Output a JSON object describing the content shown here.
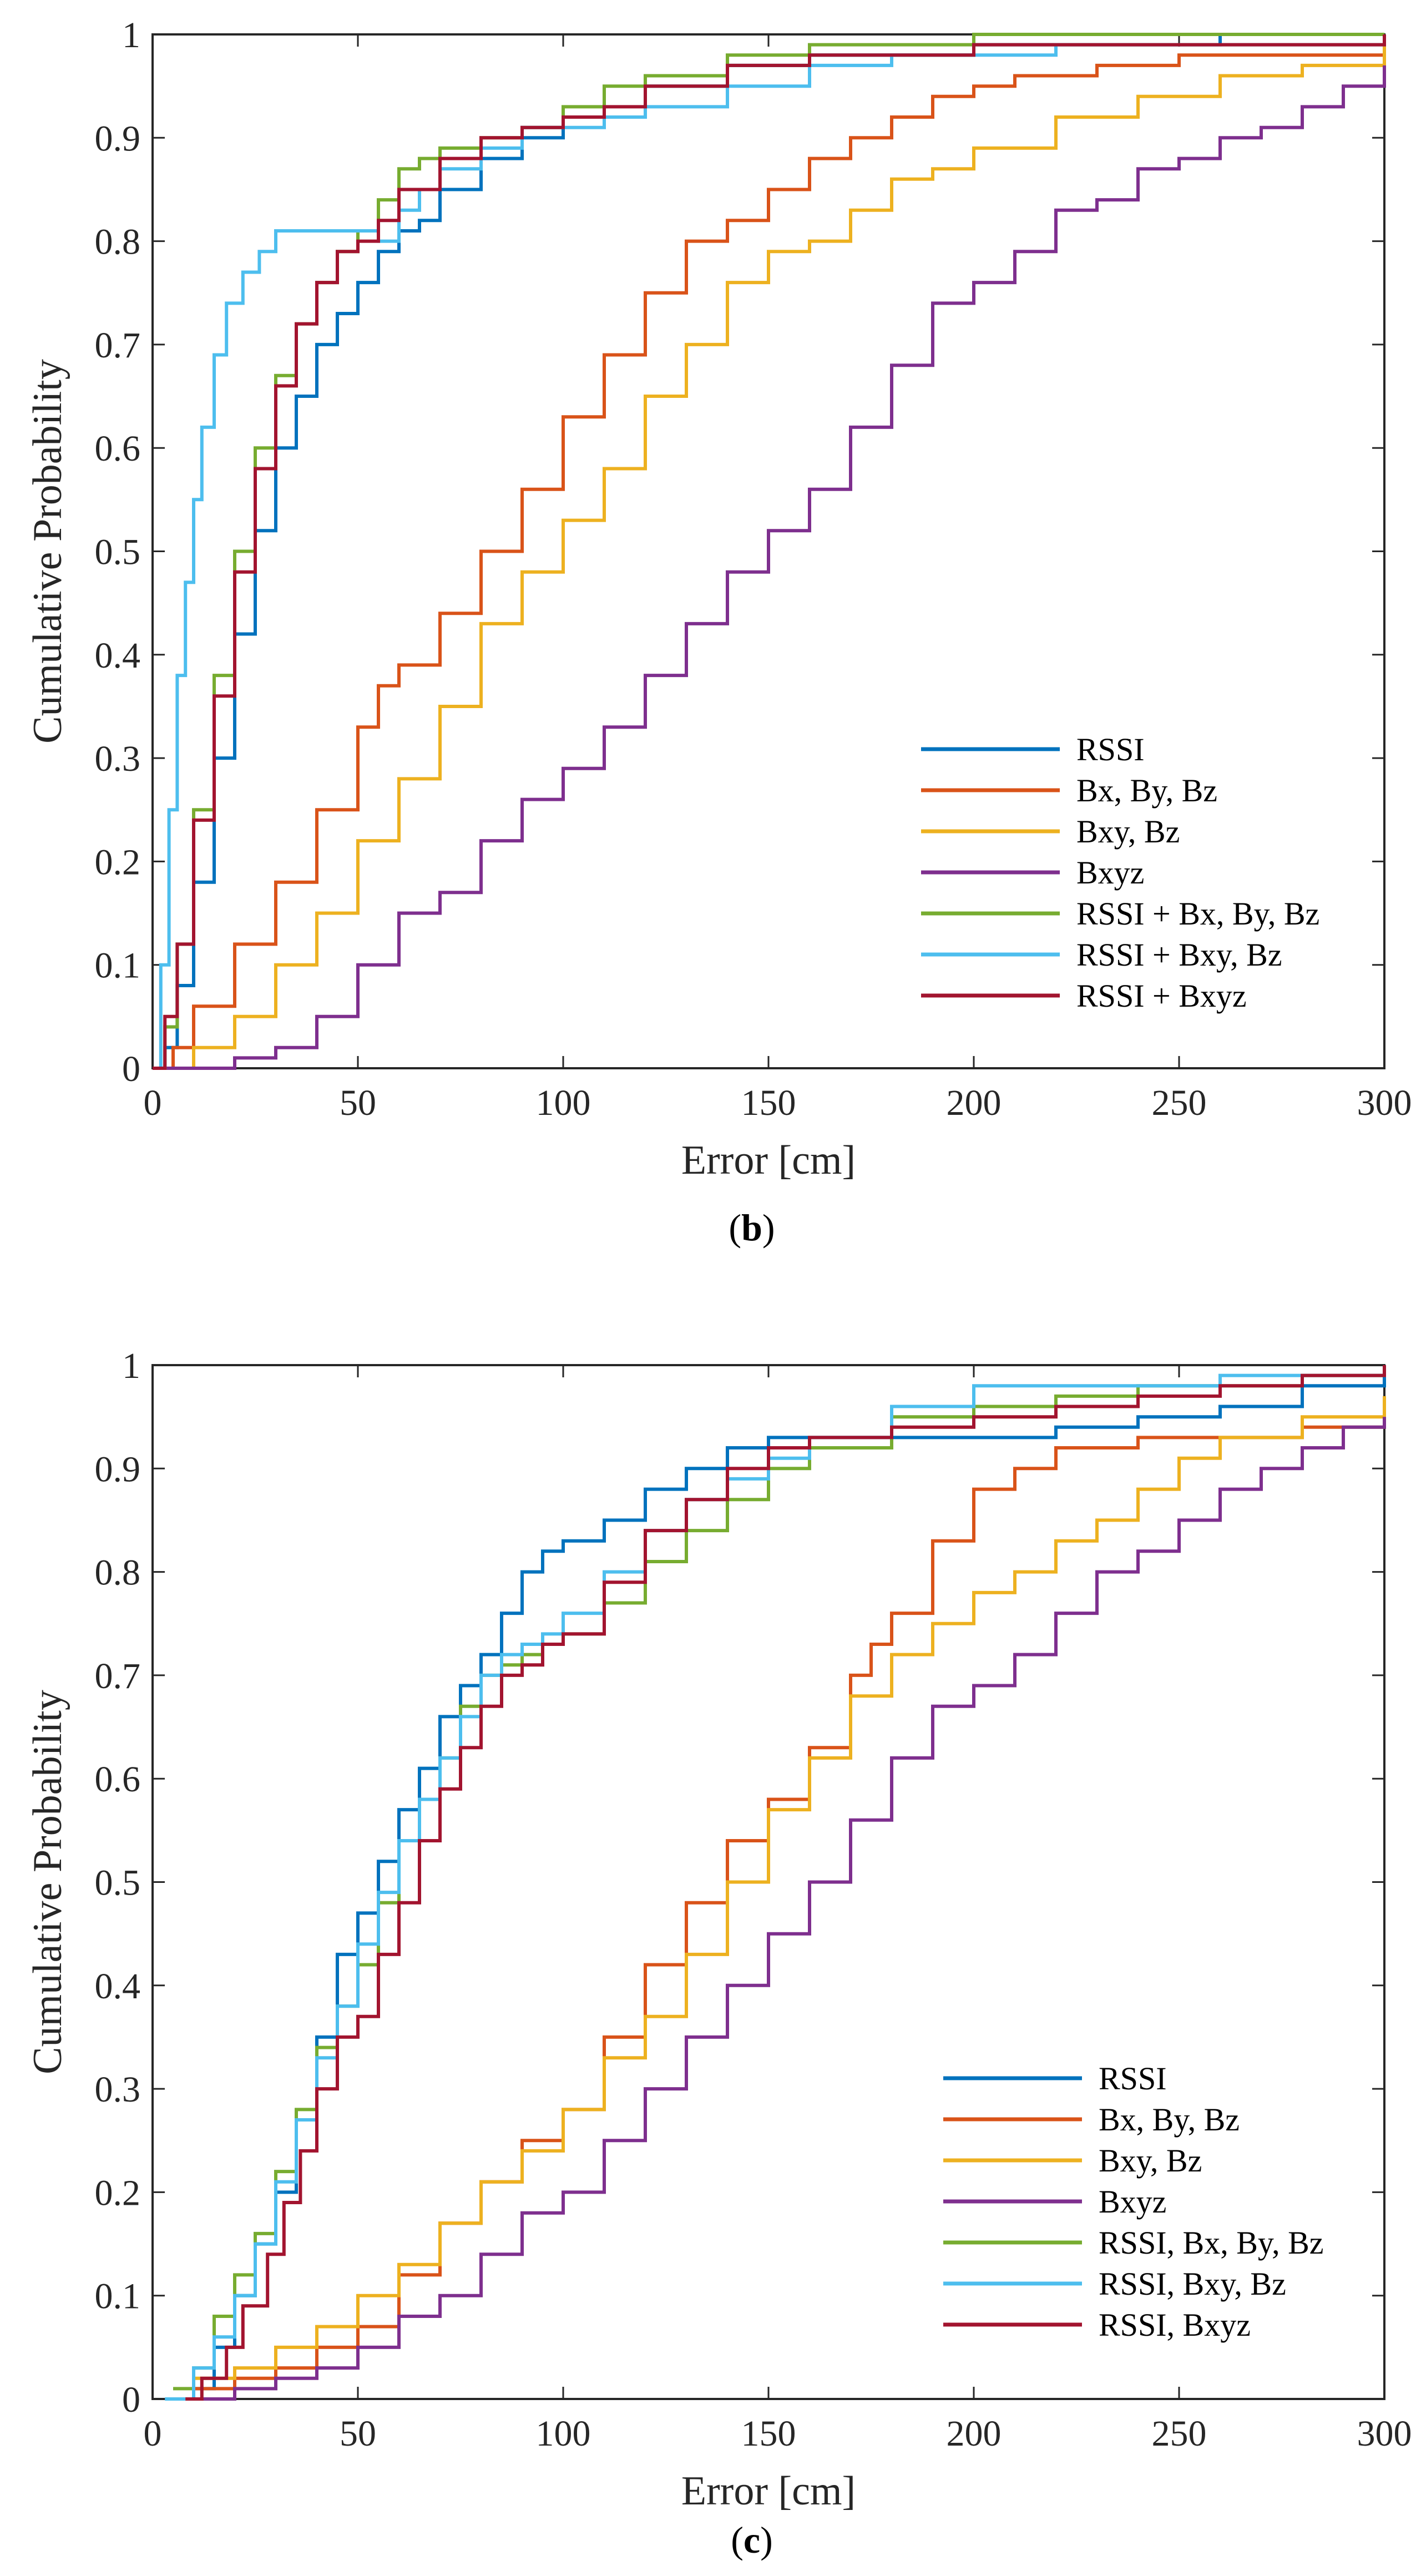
{
  "figure": {
    "colors": {
      "blue": "#0072BD",
      "orange": "#D95319",
      "yellow": "#EDB120",
      "purple": "#7E2F8E",
      "green": "#77AC30",
      "cyan": "#4DBEEE",
      "darkred": "#A2142F"
    }
  },
  "chart_data": [
    {
      "type": "line",
      "panel": "b",
      "caption": {
        "open": "(",
        "letter": "b",
        "close": ")"
      },
      "title": "",
      "xlabel": "Error [cm]",
      "ylabel": "Cumulative Probability",
      "xlim": [
        0,
        300
      ],
      "ylim": [
        0,
        1
      ],
      "xticks": [
        0,
        50,
        100,
        150,
        200,
        250,
        300
      ],
      "yticks": [
        0,
        0.1,
        0.2,
        0.3,
        0.4,
        0.5,
        0.6,
        0.7,
        0.8,
        0.9,
        1
      ],
      "xtick_labels": [
        "0",
        "50",
        "100",
        "150",
        "200",
        "250",
        "300"
      ],
      "ytick_labels": [
        "0",
        "0.1",
        "0.2",
        "0.3",
        "0.4",
        "0.5",
        "0.6",
        "0.7",
        "0.8",
        "0.9",
        "1"
      ],
      "grid": false,
      "legend_position": "bottom-right",
      "series": [
        {
          "name": "RSSI",
          "color": "#0072BD",
          "x": [
            0,
            3,
            6,
            10,
            15,
            20,
            25,
            30,
            35,
            40,
            45,
            50,
            55,
            60,
            65,
            70,
            80,
            90,
            100,
            120,
            140,
            160,
            200,
            260,
            300
          ],
          "y": [
            0,
            0.02,
            0.08,
            0.18,
            0.3,
            0.42,
            0.52,
            0.6,
            0.65,
            0.7,
            0.73,
            0.76,
            0.79,
            0.81,
            0.82,
            0.85,
            0.88,
            0.9,
            0.92,
            0.95,
            0.97,
            0.98,
            0.99,
            1.0,
            1.0
          ]
        },
        {
          "name": "Bx, By, Bz",
          "color": "#D95319",
          "x": [
            0,
            5,
            10,
            20,
            30,
            40,
            50,
            55,
            60,
            70,
            80,
            90,
            100,
            110,
            120,
            130,
            140,
            150,
            160,
            170,
            180,
            190,
            200,
            210,
            230,
            250,
            300
          ],
          "y": [
            0,
            0.02,
            0.06,
            0.12,
            0.18,
            0.25,
            0.33,
            0.37,
            0.39,
            0.44,
            0.5,
            0.56,
            0.63,
            0.69,
            0.75,
            0.8,
            0.82,
            0.85,
            0.88,
            0.9,
            0.92,
            0.94,
            0.95,
            0.96,
            0.97,
            0.98,
            0.99
          ]
        },
        {
          "name": "Bxy, Bz",
          "color": "#EDB120",
          "x": [
            0,
            10,
            20,
            30,
            40,
            50,
            60,
            70,
            80,
            90,
            100,
            110,
            120,
            130,
            140,
            150,
            160,
            170,
            180,
            190,
            200,
            220,
            240,
            260,
            280,
            300
          ],
          "y": [
            0,
            0.02,
            0.05,
            0.1,
            0.15,
            0.22,
            0.28,
            0.35,
            0.43,
            0.48,
            0.53,
            0.58,
            0.65,
            0.7,
            0.76,
            0.79,
            0.8,
            0.83,
            0.86,
            0.87,
            0.89,
            0.92,
            0.94,
            0.96,
            0.97,
            0.99
          ]
        },
        {
          "name": "Bxyz",
          "color": "#7E2F8E",
          "x": [
            0,
            10,
            20,
            30,
            40,
            50,
            60,
            70,
            80,
            90,
            100,
            110,
            120,
            130,
            140,
            150,
            160,
            170,
            180,
            190,
            200,
            210,
            220,
            230,
            240,
            250,
            260,
            270,
            280,
            290,
            300
          ],
          "y": [
            0,
            0.0,
            0.01,
            0.02,
            0.05,
            0.1,
            0.15,
            0.17,
            0.22,
            0.26,
            0.29,
            0.33,
            0.38,
            0.43,
            0.48,
            0.52,
            0.56,
            0.62,
            0.68,
            0.74,
            0.76,
            0.79,
            0.83,
            0.84,
            0.87,
            0.88,
            0.9,
            0.91,
            0.93,
            0.95,
            0.97
          ]
        },
        {
          "name": "RSSI + Bx, By, Bz",
          "color": "#77AC30",
          "x": [
            0,
            3,
            6,
            10,
            15,
            20,
            25,
            30,
            35,
            40,
            45,
            50,
            55,
            60,
            65,
            70,
            80,
            90,
            100,
            110,
            120,
            140,
            160,
            200,
            300
          ],
          "y": [
            0,
            0.04,
            0.12,
            0.25,
            0.38,
            0.5,
            0.6,
            0.67,
            0.72,
            0.76,
            0.79,
            0.81,
            0.84,
            0.87,
            0.88,
            0.89,
            0.9,
            0.91,
            0.93,
            0.95,
            0.96,
            0.98,
            0.99,
            1.0,
            1.0
          ]
        },
        {
          "name": "RSSI + Bxy, Bz",
          "color": "#4DBEEE",
          "x": [
            0,
            2,
            4,
            6,
            8,
            10,
            12,
            15,
            18,
            22,
            26,
            30,
            40,
            50,
            55,
            60,
            65,
            70,
            80,
            90,
            100,
            110,
            120,
            140,
            160,
            180,
            220,
            300
          ],
          "y": [
            0,
            0.1,
            0.25,
            0.38,
            0.47,
            0.55,
            0.62,
            0.69,
            0.74,
            0.77,
            0.79,
            0.81,
            0.81,
            0.81,
            0.8,
            0.83,
            0.85,
            0.87,
            0.89,
            0.91,
            0.91,
            0.92,
            0.93,
            0.95,
            0.97,
            0.98,
            0.99,
            1.0
          ]
        },
        {
          "name": "RSSI + Bxyz",
          "color": "#A2142F",
          "x": [
            0,
            3,
            6,
            10,
            15,
            20,
            25,
            30,
            35,
            40,
            45,
            50,
            55,
            60,
            70,
            80,
            90,
            100,
            110,
            120,
            140,
            160,
            200,
            300
          ],
          "y": [
            0,
            0.05,
            0.12,
            0.24,
            0.36,
            0.48,
            0.58,
            0.66,
            0.72,
            0.76,
            0.79,
            0.8,
            0.82,
            0.85,
            0.88,
            0.9,
            0.91,
            0.92,
            0.93,
            0.95,
            0.97,
            0.98,
            0.99,
            1.0
          ]
        }
      ]
    },
    {
      "type": "line",
      "panel": "c",
      "caption": {
        "open": "(",
        "letter": "c",
        "close": ")"
      },
      "title": "",
      "xlabel": "Error [cm]",
      "ylabel": "Cumulative Probability",
      "xlim": [
        0,
        300
      ],
      "ylim": [
        0,
        1
      ],
      "xticks": [
        0,
        50,
        100,
        150,
        200,
        250,
        300
      ],
      "yticks": [
        0,
        0.1,
        0.2,
        0.3,
        0.4,
        0.5,
        0.6,
        0.7,
        0.8,
        0.9,
        1
      ],
      "xtick_labels": [
        "0",
        "50",
        "100",
        "150",
        "200",
        "250",
        "300"
      ],
      "ytick_labels": [
        "0",
        "0.1",
        "0.2",
        "0.3",
        "0.4",
        "0.5",
        "0.6",
        "0.7",
        "0.8",
        "0.9",
        "1"
      ],
      "grid": false,
      "legend_position": "bottom-right",
      "series": [
        {
          "name": "RSSI",
          "color": "#0072BD",
          "x": [
            5,
            10,
            15,
            20,
            25,
            30,
            35,
            40,
            45,
            50,
            55,
            60,
            65,
            70,
            75,
            80,
            85,
            90,
            95,
            100,
            110,
            120,
            130,
            140,
            150,
            160,
            180,
            200,
            220,
            240,
            260,
            280,
            300
          ],
          "y": [
            0,
            0.01,
            0.05,
            0.1,
            0.15,
            0.2,
            0.27,
            0.35,
            0.43,
            0.47,
            0.52,
            0.57,
            0.61,
            0.66,
            0.69,
            0.72,
            0.76,
            0.8,
            0.82,
            0.83,
            0.85,
            0.88,
            0.9,
            0.92,
            0.93,
            0.93,
            0.93,
            0.93,
            0.94,
            0.95,
            0.96,
            0.98,
            0.99
          ]
        },
        {
          "name": "Bx, By, Bz",
          "color": "#D95319",
          "x": [
            5,
            10,
            20,
            30,
            40,
            50,
            60,
            70,
            80,
            90,
            100,
            110,
            120,
            130,
            140,
            150,
            160,
            170,
            175,
            180,
            190,
            200,
            210,
            220,
            240,
            260,
            280,
            300
          ],
          "y": [
            0,
            0.01,
            0.02,
            0.03,
            0.05,
            0.07,
            0.12,
            0.17,
            0.21,
            0.25,
            0.28,
            0.35,
            0.42,
            0.48,
            0.54,
            0.58,
            0.63,
            0.7,
            0.73,
            0.76,
            0.83,
            0.88,
            0.9,
            0.92,
            0.93,
            0.93,
            0.94,
            0.95
          ]
        },
        {
          "name": "Bxy, Bz",
          "color": "#EDB120",
          "x": [
            5,
            10,
            20,
            30,
            40,
            50,
            60,
            70,
            80,
            90,
            100,
            110,
            120,
            130,
            140,
            150,
            160,
            170,
            180,
            190,
            200,
            210,
            220,
            230,
            240,
            250,
            260,
            280,
            300
          ],
          "y": [
            0,
            0.02,
            0.03,
            0.05,
            0.07,
            0.1,
            0.13,
            0.17,
            0.21,
            0.24,
            0.28,
            0.33,
            0.37,
            0.43,
            0.5,
            0.57,
            0.62,
            0.68,
            0.72,
            0.75,
            0.78,
            0.8,
            0.83,
            0.85,
            0.88,
            0.91,
            0.93,
            0.95,
            0.97
          ]
        },
        {
          "name": "Bxyz",
          "color": "#7E2F8E",
          "x": [
            10,
            20,
            30,
            40,
            50,
            60,
            70,
            80,
            90,
            100,
            110,
            120,
            130,
            140,
            150,
            160,
            170,
            180,
            190,
            200,
            210,
            220,
            230,
            240,
            250,
            260,
            270,
            280,
            290,
            300
          ],
          "y": [
            0,
            0.01,
            0.02,
            0.03,
            0.05,
            0.08,
            0.1,
            0.14,
            0.18,
            0.2,
            0.25,
            0.3,
            0.35,
            0.4,
            0.45,
            0.5,
            0.56,
            0.62,
            0.67,
            0.69,
            0.72,
            0.76,
            0.8,
            0.82,
            0.85,
            0.88,
            0.9,
            0.92,
            0.94,
            0.95
          ]
        },
        {
          "name": "RSSI, Bx, By, Bz",
          "color": "#77AC30",
          "x": [
            5,
            10,
            15,
            20,
            25,
            30,
            35,
            40,
            45,
            50,
            55,
            60,
            65,
            70,
            75,
            80,
            85,
            90,
            95,
            100,
            110,
            120,
            130,
            140,
            150,
            160,
            180,
            200,
            220,
            240,
            260,
            280,
            300
          ],
          "y": [
            0.01,
            0.03,
            0.08,
            0.12,
            0.16,
            0.22,
            0.28,
            0.34,
            0.38,
            0.42,
            0.48,
            0.54,
            0.58,
            0.62,
            0.67,
            0.7,
            0.71,
            0.72,
            0.73,
            0.74,
            0.77,
            0.81,
            0.84,
            0.87,
            0.9,
            0.92,
            0.95,
            0.96,
            0.97,
            0.98,
            0.98,
            0.99,
            1.0
          ]
        },
        {
          "name": "RSSI, Bxy, Bz",
          "color": "#4DBEEE",
          "x": [
            3,
            10,
            15,
            20,
            25,
            30,
            35,
            40,
            45,
            50,
            55,
            60,
            65,
            70,
            75,
            80,
            85,
            90,
            95,
            100,
            110,
            120,
            130,
            140,
            150,
            160,
            180,
            200,
            220,
            240,
            260,
            280,
            300
          ],
          "y": [
            0,
            0.03,
            0.06,
            0.1,
            0.15,
            0.21,
            0.27,
            0.33,
            0.38,
            0.44,
            0.49,
            0.54,
            0.58,
            0.62,
            0.66,
            0.7,
            0.72,
            0.73,
            0.74,
            0.76,
            0.8,
            0.84,
            0.87,
            0.89,
            0.91,
            0.93,
            0.96,
            0.98,
            0.98,
            0.98,
            0.99,
            0.99,
            1.0
          ]
        },
        {
          "name": "RSSI, Bxyz",
          "color": "#A2142F",
          "x": [
            8,
            12,
            18,
            22,
            28,
            32,
            36,
            40,
            45,
            50,
            55,
            60,
            65,
            70,
            75,
            80,
            85,
            90,
            95,
            100,
            110,
            120,
            130,
            140,
            150,
            160,
            180,
            200,
            220,
            240,
            260,
            280,
            300
          ],
          "y": [
            0,
            0.02,
            0.05,
            0.09,
            0.14,
            0.19,
            0.24,
            0.3,
            0.35,
            0.37,
            0.43,
            0.48,
            0.54,
            0.59,
            0.63,
            0.67,
            0.7,
            0.71,
            0.73,
            0.74,
            0.79,
            0.84,
            0.87,
            0.9,
            0.92,
            0.93,
            0.94,
            0.95,
            0.96,
            0.97,
            0.98,
            0.99,
            1.0
          ]
        }
      ]
    }
  ]
}
